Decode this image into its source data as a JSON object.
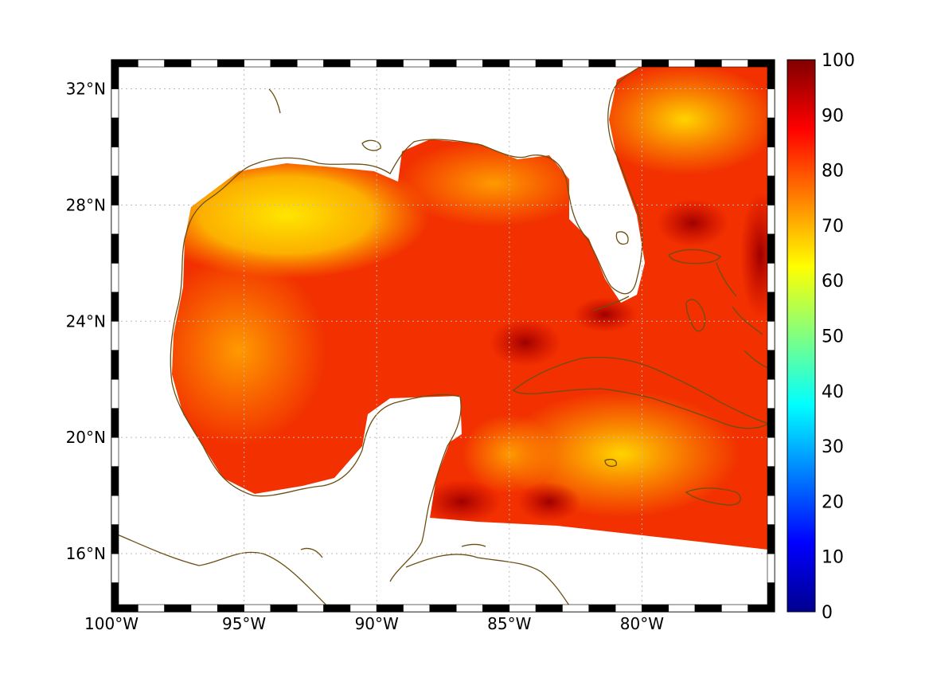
{
  "map": {
    "projection": "equidistant cylindrical",
    "lon_range": [
      -100,
      -75
    ],
    "lat_range": [
      14,
      33
    ],
    "lon_ticks": [
      {
        "value": -100,
        "label": "100°W"
      },
      {
        "value": -95,
        "label": "95°W"
      },
      {
        "value": -90,
        "label": "90°W"
      },
      {
        "value": -85,
        "label": "85°W"
      },
      {
        "value": -80,
        "label": "80°W"
      }
    ],
    "lat_ticks": [
      {
        "value": 32,
        "label": "32°N"
      },
      {
        "value": 28,
        "label": "28°N"
      },
      {
        "value": 24,
        "label": "24°N"
      },
      {
        "value": 20,
        "label": "20°N"
      },
      {
        "value": 16,
        "label": "16°N"
      }
    ],
    "grid": true,
    "coastline_color": "#6b4f12",
    "field_colormap": "jet"
  },
  "colorbar": {
    "colormap": "jet",
    "range": [
      0,
      100
    ],
    "ticks": [
      {
        "value": 100,
        "label": "100"
      },
      {
        "value": 90,
        "label": "90"
      },
      {
        "value": 80,
        "label": "80"
      },
      {
        "value": 70,
        "label": "70"
      },
      {
        "value": 60,
        "label": "60"
      },
      {
        "value": 50,
        "label": "50"
      },
      {
        "value": 40,
        "label": "40"
      },
      {
        "value": 30,
        "label": "30"
      },
      {
        "value": 20,
        "label": "20"
      },
      {
        "value": 10,
        "label": "10"
      },
      {
        "value": 0,
        "label": "0"
      }
    ]
  }
}
